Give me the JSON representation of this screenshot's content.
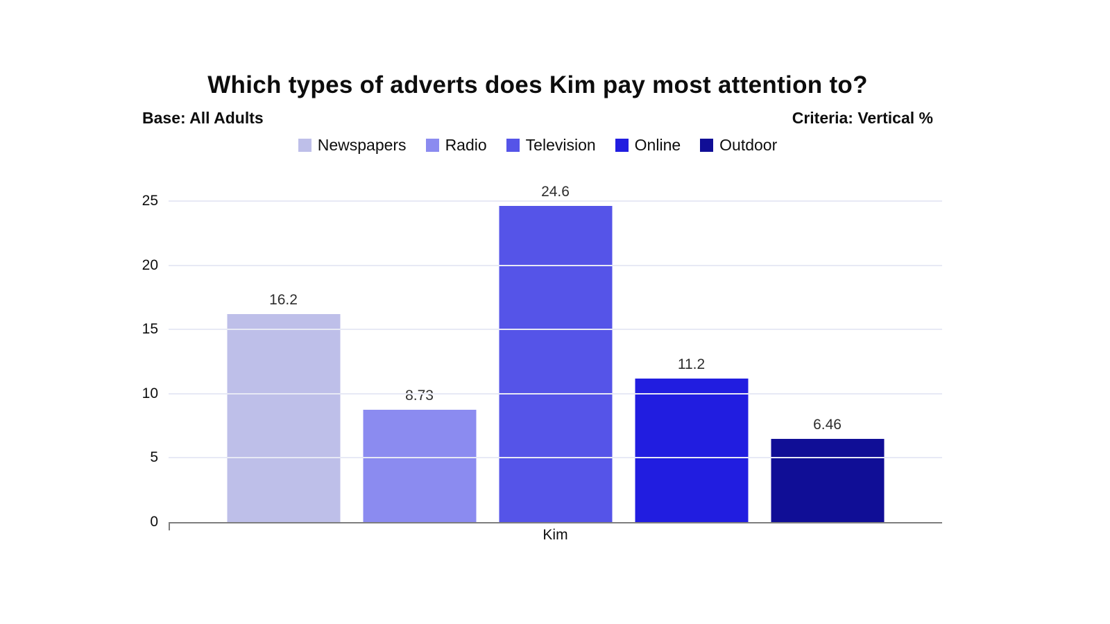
{
  "header": {
    "title": "Which types of adverts does Kim pay most attention to?",
    "base_label": "Base: All Adults",
    "criteria_label": "Criteria: Vertical %"
  },
  "chart_data": {
    "type": "bar",
    "title": "Which types of adverts does Kim pay most attention to?",
    "subtitle_left": "Base: All Adults",
    "subtitle_right": "Criteria: Vertical %",
    "categories": [
      "Kim"
    ],
    "series": [
      {
        "name": "Newspapers",
        "values": [
          16.2
        ],
        "label": "16.2",
        "color": "#bebfe9"
      },
      {
        "name": "Radio",
        "values": [
          8.73
        ],
        "label": "8.73",
        "color": "#8b8bf0"
      },
      {
        "name": "Television",
        "values": [
          24.6
        ],
        "label": "24.6",
        "color": "#5554e8"
      },
      {
        "name": "Online",
        "values": [
          11.2
        ],
        "label": "11.2",
        "color": "#211de0"
      },
      {
        "name": "Outdoor",
        "values": [
          6.46
        ],
        "label": "6.46",
        "color": "#100e96"
      }
    ],
    "xlabel": "",
    "ylabel": "",
    "ylim": [
      0,
      25
    ],
    "yticks": [
      0,
      5,
      10,
      15,
      20,
      25
    ],
    "grid": true,
    "legend_position": "top",
    "gridline_color": "#e7e9f5",
    "axis_color": "#7d7d7d",
    "background_color": "#ffffff"
  }
}
